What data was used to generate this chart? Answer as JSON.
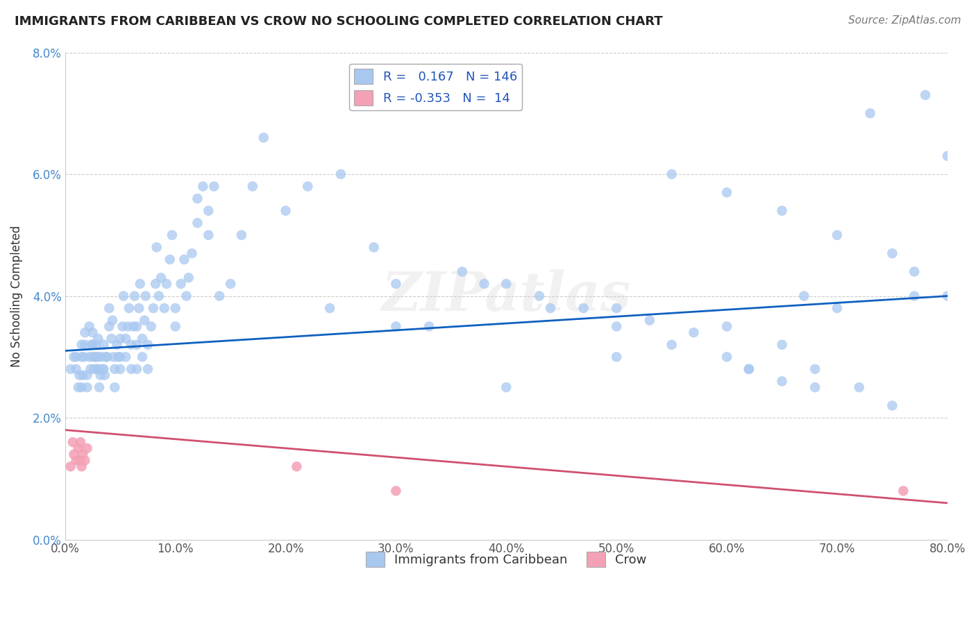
{
  "title": "IMMIGRANTS FROM CARIBBEAN VS CROW NO SCHOOLING COMPLETED CORRELATION CHART",
  "source": "Source: ZipAtlas.com",
  "ylabel": "No Schooling Completed",
  "legend_label1": "Immigrants from Caribbean",
  "legend_label2": "Crow",
  "R1": 0.167,
  "N1": 146,
  "R2": -0.353,
  "N2": 14,
  "xlim": [
    0.0,
    0.8
  ],
  "ylim": [
    0.0,
    0.08
  ],
  "xticks": [
    0.0,
    0.1,
    0.2,
    0.3,
    0.4,
    0.5,
    0.6,
    0.7,
    0.8
  ],
  "yticks": [
    0.0,
    0.02,
    0.04,
    0.06,
    0.08
  ],
  "color_blue": "#A8C8F0",
  "color_pink": "#F4A0B5",
  "trend_blue": "#1060C0",
  "trend_pink": "#D05070",
  "watermark": "ZIPatlas",
  "blue_trend_start_y": 0.031,
  "blue_trend_end_y": 0.04,
  "pink_trend_start_y": 0.018,
  "pink_trend_end_y": 0.006,
  "blue_points_x": [
    0.005,
    0.008,
    0.01,
    0.01,
    0.012,
    0.013,
    0.015,
    0.015,
    0.015,
    0.016,
    0.017,
    0.018,
    0.018,
    0.02,
    0.02,
    0.022,
    0.022,
    0.023,
    0.024,
    0.025,
    0.025,
    0.025,
    0.026,
    0.027,
    0.028,
    0.028,
    0.029,
    0.03,
    0.03,
    0.03,
    0.031,
    0.032,
    0.033,
    0.034,
    0.035,
    0.035,
    0.036,
    0.037,
    0.038,
    0.04,
    0.04,
    0.042,
    0.043,
    0.044,
    0.045,
    0.045,
    0.047,
    0.048,
    0.05,
    0.05,
    0.05,
    0.052,
    0.053,
    0.055,
    0.055,
    0.057,
    0.058,
    0.06,
    0.06,
    0.062,
    0.063,
    0.065,
    0.065,
    0.065,
    0.067,
    0.068,
    0.07,
    0.07,
    0.072,
    0.073,
    0.075,
    0.075,
    0.078,
    0.08,
    0.082,
    0.083,
    0.085,
    0.087,
    0.09,
    0.092,
    0.095,
    0.097,
    0.1,
    0.1,
    0.105,
    0.108,
    0.11,
    0.112,
    0.115,
    0.12,
    0.12,
    0.125,
    0.13,
    0.13,
    0.135,
    0.14,
    0.15,
    0.16,
    0.17,
    0.18,
    0.2,
    0.22,
    0.25,
    0.28,
    0.3,
    0.33,
    0.36,
    0.4,
    0.43,
    0.47,
    0.5,
    0.53,
    0.57,
    0.6,
    0.62,
    0.65,
    0.67,
    0.7,
    0.4,
    0.5,
    0.6,
    0.65,
    0.68,
    0.72,
    0.75,
    0.77,
    0.24,
    0.3,
    0.38,
    0.44,
    0.5,
    0.55,
    0.62,
    0.68,
    0.73,
    0.78,
    0.8,
    0.55,
    0.6,
    0.65,
    0.7,
    0.75,
    0.77,
    0.8
  ],
  "blue_points_y": [
    0.028,
    0.03,
    0.028,
    0.03,
    0.025,
    0.027,
    0.03,
    0.032,
    0.025,
    0.027,
    0.03,
    0.032,
    0.034,
    0.025,
    0.027,
    0.03,
    0.035,
    0.028,
    0.032,
    0.03,
    0.032,
    0.034,
    0.028,
    0.03,
    0.03,
    0.032,
    0.028,
    0.028,
    0.03,
    0.033,
    0.025,
    0.027,
    0.03,
    0.028,
    0.028,
    0.032,
    0.027,
    0.03,
    0.03,
    0.035,
    0.038,
    0.033,
    0.036,
    0.03,
    0.025,
    0.028,
    0.032,
    0.03,
    0.028,
    0.03,
    0.033,
    0.035,
    0.04,
    0.03,
    0.033,
    0.035,
    0.038,
    0.028,
    0.032,
    0.035,
    0.04,
    0.028,
    0.032,
    0.035,
    0.038,
    0.042,
    0.03,
    0.033,
    0.036,
    0.04,
    0.028,
    0.032,
    0.035,
    0.038,
    0.042,
    0.048,
    0.04,
    0.043,
    0.038,
    0.042,
    0.046,
    0.05,
    0.035,
    0.038,
    0.042,
    0.046,
    0.04,
    0.043,
    0.047,
    0.052,
    0.056,
    0.058,
    0.05,
    0.054,
    0.058,
    0.04,
    0.042,
    0.05,
    0.058,
    0.066,
    0.054,
    0.058,
    0.06,
    0.048,
    0.042,
    0.035,
    0.044,
    0.042,
    0.04,
    0.038,
    0.038,
    0.036,
    0.034,
    0.03,
    0.028,
    0.026,
    0.04,
    0.038,
    0.025,
    0.03,
    0.035,
    0.032,
    0.028,
    0.025,
    0.022,
    0.04,
    0.038,
    0.035,
    0.042,
    0.038,
    0.035,
    0.032,
    0.028,
    0.025,
    0.07,
    0.073,
    0.063,
    0.06,
    0.057,
    0.054,
    0.05,
    0.047,
    0.044,
    0.04
  ],
  "pink_points_x": [
    0.005,
    0.007,
    0.008,
    0.01,
    0.012,
    0.013,
    0.014,
    0.015,
    0.016,
    0.018,
    0.02,
    0.21,
    0.3,
    0.76
  ],
  "pink_points_y": [
    0.012,
    0.016,
    0.014,
    0.013,
    0.015,
    0.013,
    0.016,
    0.012,
    0.014,
    0.013,
    0.015,
    0.012,
    0.008,
    0.008
  ]
}
